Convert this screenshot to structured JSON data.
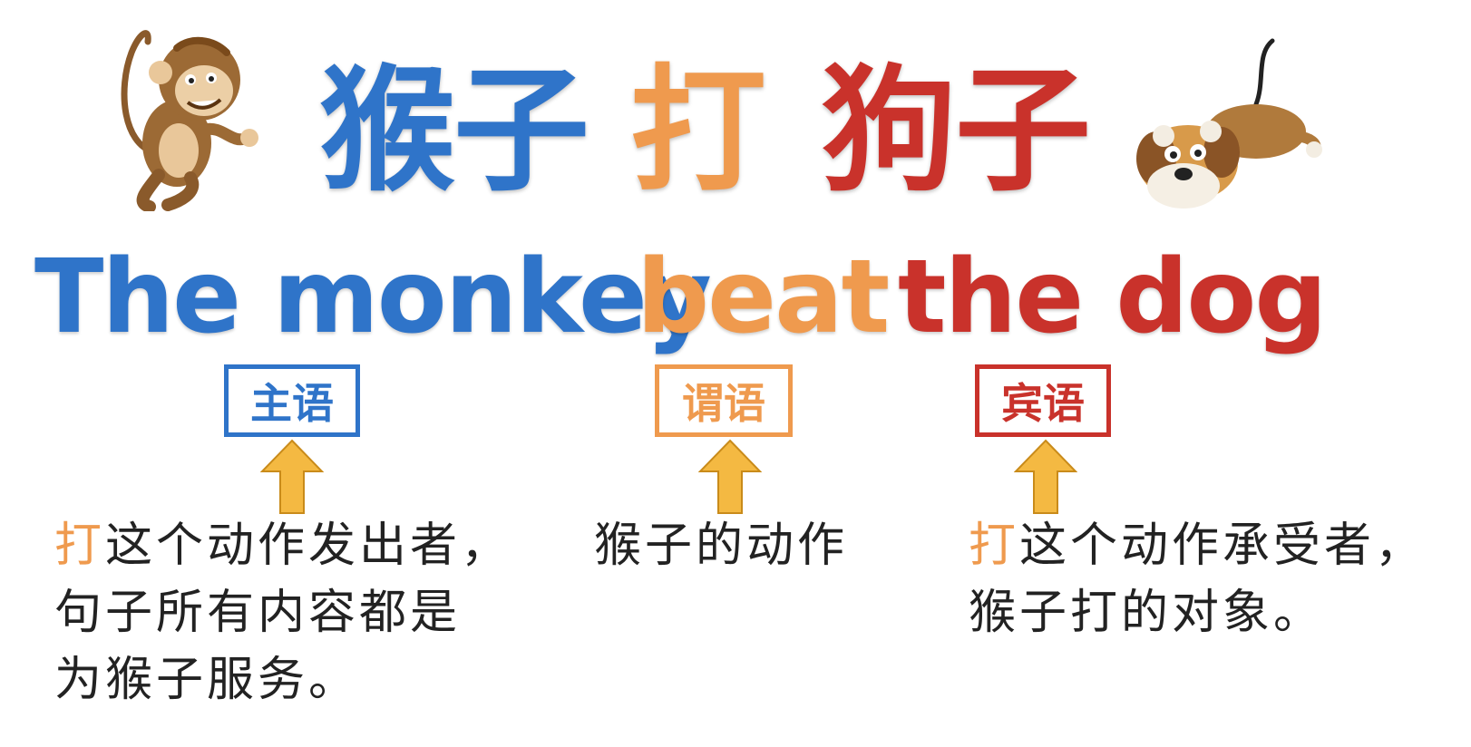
{
  "title_cn": {
    "subject": "猴子",
    "verb": "打",
    "object": "狗子"
  },
  "title_en": {
    "subject": "The monkey",
    "verb": "beat",
    "object": "the dog"
  },
  "tags": {
    "subject": "主语",
    "predicate": "谓语",
    "object": "宾语"
  },
  "descriptions": {
    "subject": {
      "highlight": "打",
      "line1_rest": "这个动作发出者，",
      "line2": "句子所有内容都是",
      "line3": "为猴子服务。"
    },
    "predicate": {
      "line1": "猴子的动作"
    },
    "object": {
      "highlight": "打",
      "line1_rest": "这个动作承受者，",
      "line2": "猴子打的对象。"
    }
  },
  "colors": {
    "subject": "#2f74c9",
    "predicate": "#ef9a4e",
    "object": "#c9322b",
    "arrow": "#f4b942"
  },
  "icons": {
    "left": "monkey-illustration",
    "right": "dog-illustration"
  }
}
